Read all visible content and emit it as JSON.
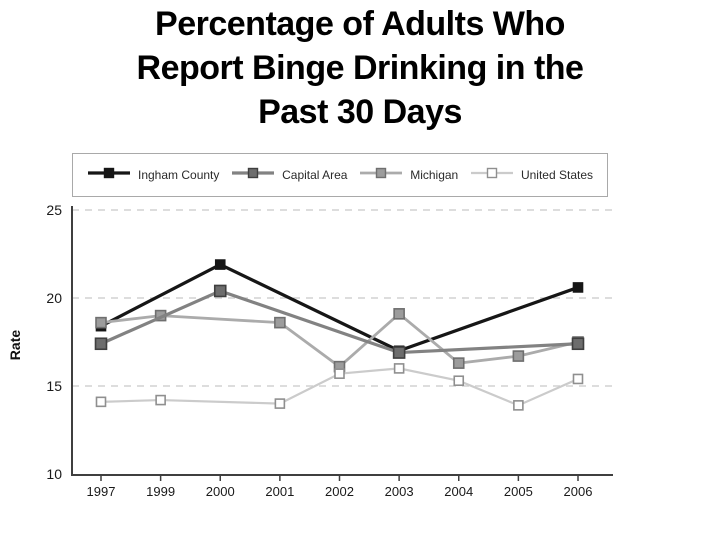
{
  "slide": {
    "title_lines": [
      "Percentage of Adults Who",
      "Report Binge Drinking in the",
      "Past 30 Days"
    ]
  },
  "chart_data": {
    "type": "line",
    "title": "Percentage of Adults Who Report Binge Drinking in the Past 30 Days",
    "x": [
      "1997",
      "1999",
      "2000",
      "2001",
      "2002",
      "2003",
      "2004",
      "2005",
      "2006"
    ],
    "xlabel": "",
    "ylabel": "Rate",
    "ylim": [
      10,
      25
    ],
    "yticks": [
      10,
      15,
      20,
      25
    ],
    "grid": "horizontal-dashed",
    "legend_position": "top",
    "axis_color": "#3f3f3f",
    "grid_color": "#d2d2d2",
    "series": [
      {
        "name": "Ingham County",
        "color": "#161616",
        "line_width": 3.2,
        "marker": "filled-square",
        "marker_fill": "#161616",
        "marker_border": "#161616",
        "marker_size": 9,
        "values": [
          18.4,
          null,
          21.9,
          null,
          null,
          17.0,
          null,
          null,
          20.6
        ]
      },
      {
        "name": "Capital Area",
        "color": "#828282",
        "line_width": 3.2,
        "marker": "filled-square",
        "marker_fill": "#6d6d6d",
        "marker_border": "#3f3f3f",
        "marker_size": 11,
        "values": [
          17.4,
          null,
          20.4,
          null,
          null,
          16.9,
          null,
          null,
          17.4
        ]
      },
      {
        "name": "Michigan",
        "color": "#ababab",
        "line_width": 2.8,
        "marker": "filled-square",
        "marker_fill": "#9c9c9c",
        "marker_border": "#6f6f6f",
        "marker_size": 10,
        "values": [
          18.6,
          19.0,
          null,
          18.6,
          16.1,
          19.1,
          16.3,
          16.7,
          17.5
        ]
      },
      {
        "name": "United States",
        "color": "#cbcbcb",
        "line_width": 2.2,
        "marker": "open-square",
        "marker_fill": "#ffffff",
        "marker_border": "#8f8f8f",
        "marker_size": 9,
        "values": [
          14.1,
          14.2,
          null,
          14.0,
          15.7,
          16.0,
          15.3,
          13.9,
          15.4
        ]
      }
    ]
  }
}
